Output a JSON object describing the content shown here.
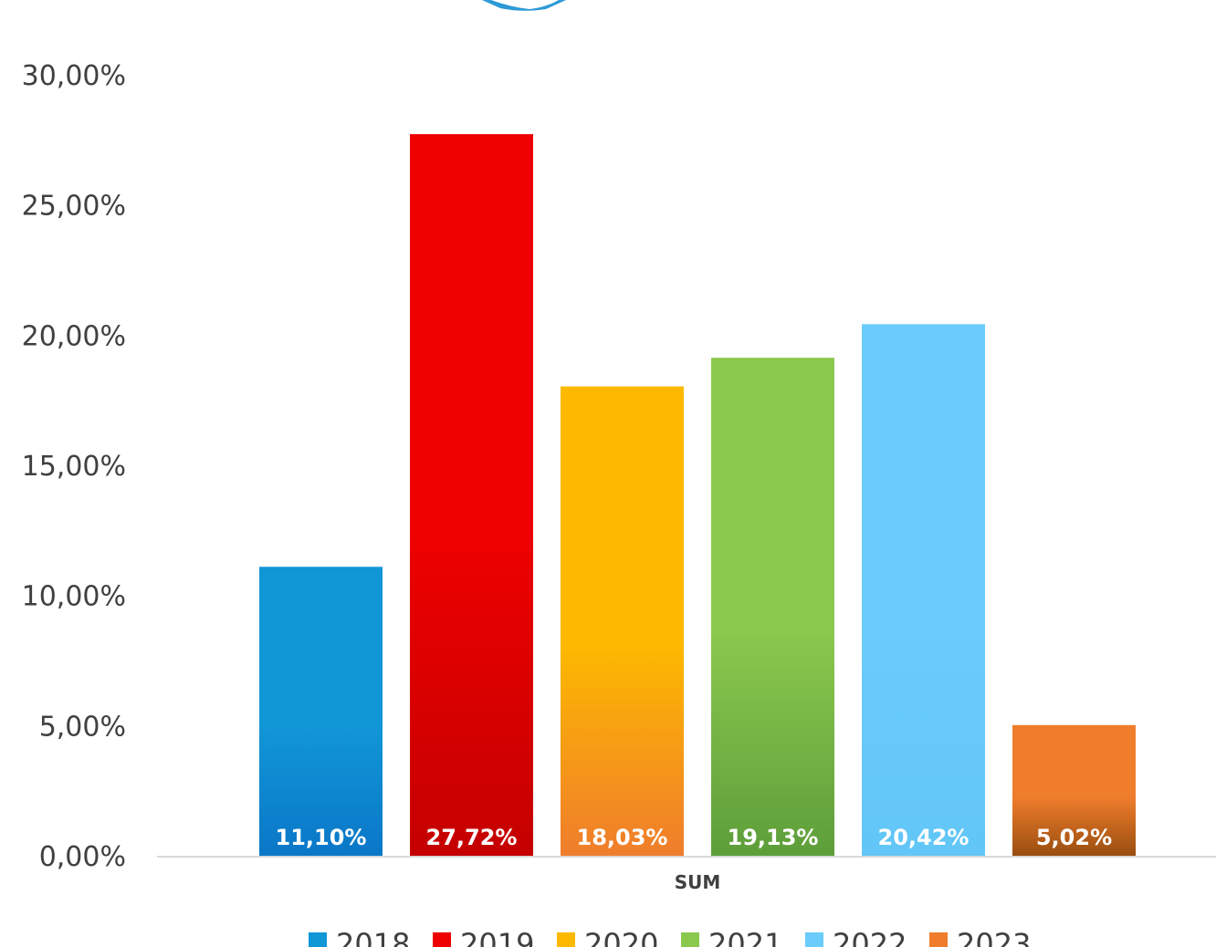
{
  "chart_data": {
    "type": "bar",
    "categories": [
      "SUM"
    ],
    "series": [
      {
        "name": "2018",
        "values": [
          11.1
        ],
        "label": "11,10%",
        "color": "#0a77c8",
        "color_top": "#1196d6"
      },
      {
        "name": "2019",
        "values": [
          27.72
        ],
        "label": "27,72%",
        "color": "#c40000",
        "color_top": "#ee0000"
      },
      {
        "name": "2020",
        "values": [
          18.03
        ],
        "label": "18,03%",
        "color": "#ef7d2c",
        "color_top": "#fdb900"
      },
      {
        "name": "2021",
        "values": [
          19.13
        ],
        "label": "19,13%",
        "color": "#5e9e3a",
        "color_top": "#8ac84e"
      },
      {
        "name": "2022",
        "values": [
          20.42
        ],
        "label": "20,42%",
        "color": "#62c6f7",
        "color_top": "#6accfb"
      },
      {
        "name": "2023",
        "values": [
          5.02
        ],
        "label": "5,02%",
        "color": "#9a4e10",
        "color_top": "#ef7d2c"
      }
    ],
    "y_ticks": [
      {
        "value": 0,
        "label": "0,00%"
      },
      {
        "value": 5,
        "label": "5,00%"
      },
      {
        "value": 10,
        "label": "10,00%"
      },
      {
        "value": 15,
        "label": "15,00%"
      },
      {
        "value": 20,
        "label": "20,00%"
      },
      {
        "value": 25,
        "label": "25,00%"
      },
      {
        "value": 30,
        "label": "30,00%"
      }
    ],
    "ylim": [
      0,
      30
    ],
    "xlabel": "SUM",
    "ylabel": "",
    "title": "",
    "grid": false,
    "legend_position": "bottom",
    "logo_color": "#2c9ad6"
  }
}
